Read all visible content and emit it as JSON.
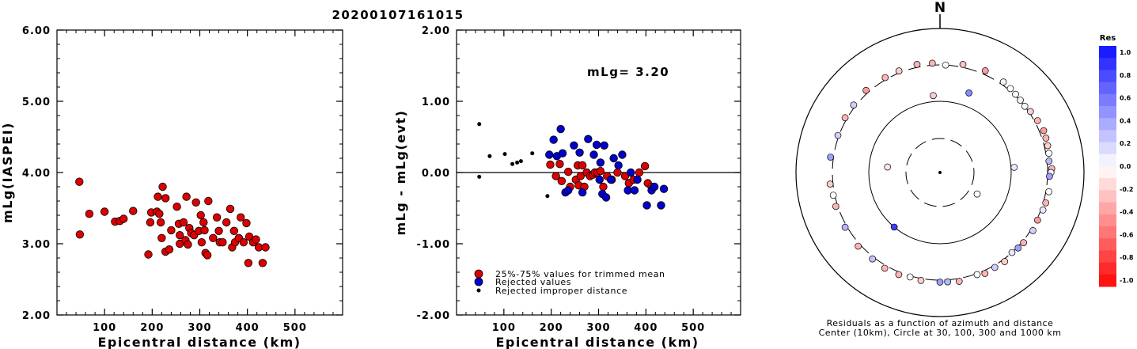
{
  "title": "20200107161015",
  "chart_data": [
    {
      "type": "scatter",
      "ylabel": "mLg(IASPEI)",
      "xlabel": "Epicentral distance (km)",
      "xlim": [
        0,
        600
      ],
      "ylim": [
        2.0,
        6.0
      ],
      "xticks": [
        "100",
        "200",
        "300",
        "400",
        "500"
      ],
      "yticks": [
        "2.00",
        "3.00",
        "4.00",
        "5.00",
        "6.00"
      ],
      "series": [
        {
          "color": "#dd0000",
          "points": [
            [
              47,
              3.87
            ],
            [
              48,
              3.13
            ],
            [
              68,
              3.42
            ],
            [
              100,
              3.45
            ],
            [
              122,
              3.31
            ],
            [
              132,
              3.32
            ],
            [
              140,
              3.35
            ],
            [
              160,
              3.46
            ],
            [
              192,
              2.85
            ],
            [
              196,
              3.3
            ],
            [
              198,
              3.44
            ],
            [
              210,
              3.45
            ],
            [
              212,
              3.66
            ],
            [
              215,
              3.42
            ],
            [
              218,
              3.3
            ],
            [
              220,
              3.08
            ],
            [
              222,
              3.8
            ],
            [
              228,
              3.64
            ],
            [
              228,
              2.89
            ],
            [
              236,
              2.92
            ],
            [
              240,
              3.19
            ],
            [
              252,
              3.52
            ],
            [
              256,
              3.28
            ],
            [
              258,
              3.12
            ],
            [
              258,
              3.0
            ],
            [
              266,
              3.3
            ],
            [
              270,
              3.05
            ],
            [
              272,
              3.66
            ],
            [
              275,
              2.99
            ],
            [
              278,
              3.22
            ],
            [
              282,
              3.15
            ],
            [
              288,
              3.12
            ],
            [
              292,
              3.58
            ],
            [
              298,
              3.18
            ],
            [
              302,
              3.4
            ],
            [
              304,
              3.02
            ],
            [
              308,
              3.3
            ],
            [
              310,
              3.19
            ],
            [
              312,
              2.87
            ],
            [
              316,
              2.84
            ],
            [
              318,
              3.6
            ],
            [
              328,
              3.08
            ],
            [
              336,
              3.37
            ],
            [
              340,
              3.18
            ],
            [
              342,
              3.02
            ],
            [
              348,
              3.02
            ],
            [
              356,
              3.3
            ],
            [
              364,
              3.49
            ],
            [
              368,
              2.95
            ],
            [
              372,
              3.18
            ],
            [
              374,
              3.02
            ],
            [
              382,
              3.08
            ],
            [
              386,
              3.37
            ],
            [
              392,
              3.02
            ],
            [
              398,
              3.29
            ],
            [
              402,
              2.73
            ],
            [
              404,
              3.1
            ],
            [
              412,
              3.02
            ],
            [
              418,
              3.06
            ],
            [
              424,
              2.95
            ],
            [
              432,
              2.73
            ],
            [
              438,
              2.95
            ]
          ]
        }
      ]
    },
    {
      "type": "scatter",
      "ylabel": "mLg - mLg(evt)",
      "xlabel": "Epicentral distance (km)",
      "xlim": [
        0,
        600
      ],
      "ylim": [
        -2.0,
        2.0
      ],
      "xticks": [
        "100",
        "200",
        "300",
        "400",
        "500"
      ],
      "yticks": [
        "-2.00",
        "-1.00",
        "0.00",
        "1.00",
        "2.00"
      ],
      "annotation": "mLg= 3.20",
      "legend": [
        {
          "label": "25%-75% values for trimmed mean",
          "color": "#dd0000"
        },
        {
          "label": "Rejected values",
          "color": "#0000cc"
        },
        {
          "label": "Rejected improper distance",
          "color": "#000000"
        }
      ],
      "series": [
        {
          "name": "25%-75% values for trimmed mean",
          "color": "#dd0000",
          "points": [
            [
              198,
              0.11
            ],
            [
              210,
              -0.05
            ],
            [
              218,
              0.12
            ],
            [
              222,
              -0.12
            ],
            [
              236,
              0.01
            ],
            [
              240,
              -0.2
            ],
            [
              252,
              -0.1
            ],
            [
              256,
              0.1
            ],
            [
              258,
              -0.18
            ],
            [
              262,
              -0.05
            ],
            [
              266,
              0.1
            ],
            [
              270,
              -0.2
            ],
            [
              275,
              0.0
            ],
            [
              282,
              -0.05
            ],
            [
              288,
              -0.03
            ],
            [
              292,
              0.0
            ],
            [
              298,
              0.0
            ],
            [
              304,
              0.02
            ],
            [
              310,
              -0.2
            ],
            [
              318,
              -0.05
            ],
            [
              328,
              -0.1
            ],
            [
              340,
              0.0
            ],
            [
              356,
              -0.05
            ],
            [
              364,
              -0.15
            ],
            [
              374,
              -0.1
            ],
            [
              386,
              0.0
            ],
            [
              398,
              0.09
            ],
            [
              404,
              -0.15
            ],
            [
              412,
              -0.2
            ]
          ]
        },
        {
          "name": "Rejected values",
          "color": "#0000cc",
          "points": [
            [
              196,
              0.25
            ],
            [
              205,
              0.46
            ],
            [
              212,
              0.23
            ],
            [
              220,
              0.61
            ],
            [
              224,
              0.27
            ],
            [
              230,
              -0.28
            ],
            [
              236,
              -0.25
            ],
            [
              248,
              0.38
            ],
            [
              260,
              0.28
            ],
            [
              266,
              -0.28
            ],
            [
              278,
              0.47
            ],
            [
              290,
              0.25
            ],
            [
              296,
              0.39
            ],
            [
              302,
              -0.1
            ],
            [
              304,
              0.14
            ],
            [
              308,
              -0.3
            ],
            [
              312,
              0.38
            ],
            [
              316,
              -0.35
            ],
            [
              326,
              -0.1
            ],
            [
              332,
              0.2
            ],
            [
              342,
              0.1
            ],
            [
              350,
              0.25
            ],
            [
              362,
              -0.25
            ],
            [
              368,
              0.0
            ],
            [
              376,
              -0.25
            ],
            [
              382,
              -0.1
            ],
            [
              402,
              -0.46
            ],
            [
              412,
              -0.25
            ],
            [
              418,
              -0.2
            ],
            [
              432,
              -0.46
            ],
            [
              438,
              -0.23
            ]
          ]
        },
        {
          "name": "Rejected improper distance",
          "color": "#000000",
          "points": [
            [
              48,
              0.68
            ],
            [
              48,
              -0.06
            ],
            [
              70,
              0.23
            ],
            [
              102,
              0.26
            ],
            [
              118,
              0.12
            ],
            [
              128,
              0.14
            ],
            [
              136,
              0.16
            ],
            [
              160,
              0.27
            ],
            [
              192,
              -0.33
            ]
          ]
        }
      ]
    },
    {
      "type": "polar scatter",
      "north_label": "N",
      "caption_1": "Residuals as a function of azimuth and distance",
      "caption_2": "Center (10km), Circle at 30, 100, 300 and 1000 km",
      "colorbar": {
        "title": "Res",
        "ticks": [
          "1.0",
          "0.8",
          "0.6",
          "0.4",
          "0.2",
          "0.0",
          "-0.2",
          "-0.4",
          "-0.6",
          "-0.8",
          "-1.0"
        ]
      },
      "stations": [
        [
          3,
          300,
          0.0
        ],
        [
          12,
          330,
          -0.25
        ],
        [
          24,
          340,
          -0.4
        ],
        [
          35,
          330,
          0.05
        ],
        [
          40,
          320,
          0.0
        ],
        [
          44,
          312,
          0.0
        ],
        [
          48,
          305,
          0.05
        ],
        [
          52,
          300,
          0.0
        ],
        [
          56,
          315,
          -0.2
        ],
        [
          62,
          330,
          -0.3
        ],
        [
          68,
          345,
          -0.4
        ],
        [
          72,
          340,
          -0.3
        ],
        [
          76,
          335,
          -0.2
        ],
        [
          80,
          330,
          0.0
        ],
        [
          84,
          320,
          0.3
        ],
        [
          88,
          345,
          -0.3
        ],
        [
          90,
          335,
          0.05
        ],
        [
          92,
          320,
          0.4
        ],
        [
          100,
          330,
          0.0
        ],
        [
          106,
          325,
          -0.3
        ],
        [
          110,
          320,
          0.1
        ],
        [
          116,
          310,
          -0.4
        ],
        [
          122,
          320,
          0.2
        ],
        [
          130,
          315,
          -0.3
        ],
        [
          134,
          310,
          0.4
        ],
        [
          138,
          300,
          0.1
        ],
        [
          144,
          325,
          -0.2
        ],
        [
          150,
          320,
          0.2
        ],
        [
          156,
          330,
          -0.3
        ],
        [
          160,
          310,
          0.0
        ],
        [
          170,
          330,
          -0.3
        ],
        [
          176,
          320,
          0.3
        ],
        [
          180,
          320,
          0.4
        ],
        [
          190,
          320,
          -0.2
        ],
        [
          196,
          310,
          0.0
        ],
        [
          202,
          325,
          -0.3
        ],
        [
          210,
          330,
          -0.3
        ],
        [
          218,
          320,
          0.25
        ],
        [
          228,
          325,
          -0.3
        ],
        [
          240,
          320,
          0.3
        ],
        [
          252,
          320,
          -0.3
        ],
        [
          258,
          315,
          0.0
        ],
        [
          264,
          330,
          -0.2
        ],
        [
          278,
          330,
          0.4
        ],
        [
          290,
          310,
          0.2
        ],
        [
          300,
          320,
          -0.3
        ],
        [
          308,
          320,
          0.2
        ],
        [
          318,
          330,
          -0.4
        ],
        [
          330,
          320,
          -0.3
        ],
        [
          338,
          320,
          -0.2
        ],
        [
          348,
          330,
          -0.3
        ],
        [
          356,
          320,
          -0.3
        ],
        [
          20,
          150,
          0.5
        ],
        [
          355,
          120,
          -0.2
        ],
        [
          86,
          110,
          0.1
        ],
        [
          220,
          100,
          0.8
        ],
        [
          276,
          55,
          -0.1
        ],
        [
          120,
          40,
          0.0
        ]
      ]
    }
  ]
}
